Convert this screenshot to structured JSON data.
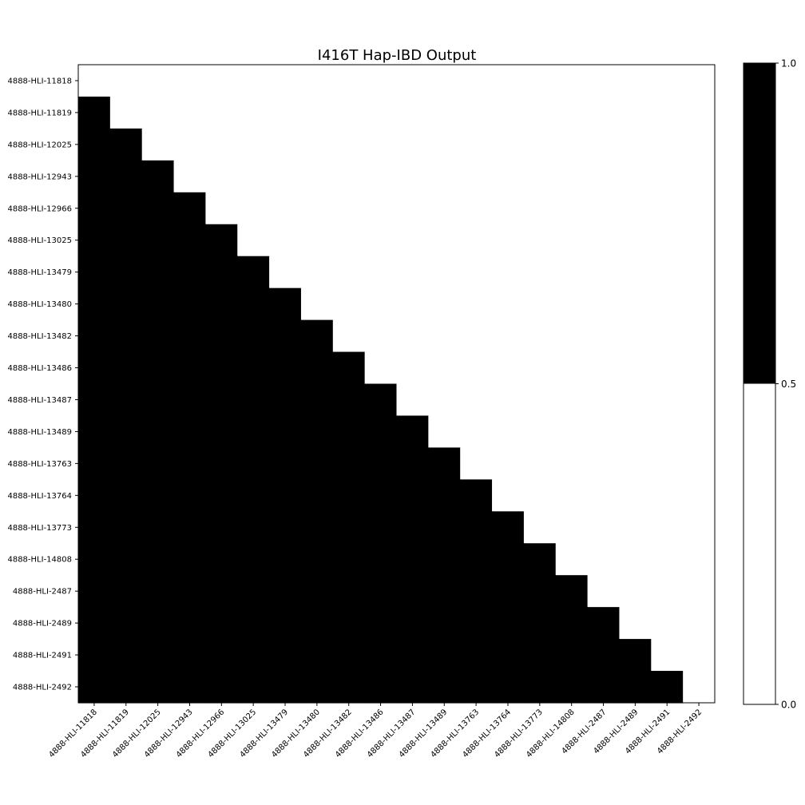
{
  "chart_data": {
    "type": "heatmap",
    "title": "I416T Hap-IBD Output",
    "labels": [
      "4888-HLI-11818",
      "4888-HLI-11819",
      "4888-HLI-12025",
      "4888-HLI-12943",
      "4888-HLI-12966",
      "4888-HLI-13025",
      "4888-HLI-13479",
      "4888-HLI-13480",
      "4888-HLI-13482",
      "4888-HLI-13486",
      "4888-HLI-13487",
      "4888-HLI-13489",
      "4888-HLI-13763",
      "4888-HLI-13764",
      "4888-HLI-13773",
      "4888-HLI-14808",
      "4888-HLI-2487",
      "4888-HLI-2489",
      "4888-HLI-2491",
      "4888-HLI-2492"
    ],
    "matrix_rule": "value is 1 for cells strictly below the diagonal, 0 elsewhere",
    "colormap": {
      "low_color": "#ffffff",
      "high_color": "#000000"
    },
    "colorbar": {
      "ticks": [
        "0.0",
        "0.5",
        "1.0"
      ],
      "range": [
        0,
        1
      ]
    },
    "grid": false
  }
}
